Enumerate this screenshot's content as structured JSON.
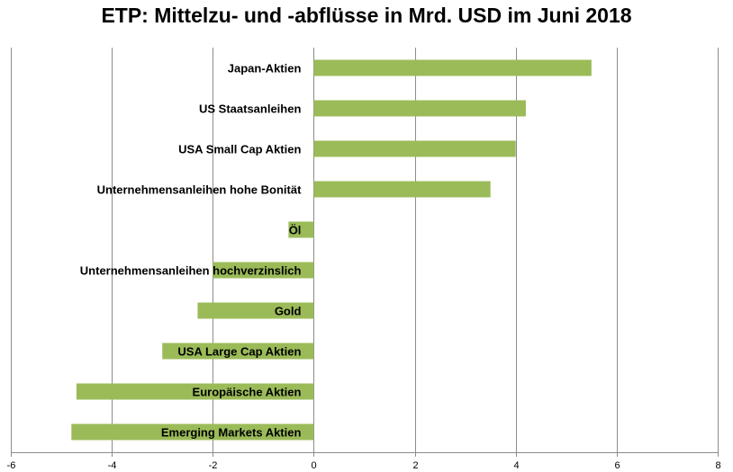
{
  "chart_data": {
    "type": "bar",
    "orientation": "horizontal",
    "title": "ETP: Mittelzu- und -abflüsse in Mrd. USD im Juni 2018",
    "xlabel": "",
    "ylabel": "",
    "xlim": [
      -6,
      8
    ],
    "x_ticks": [
      -6,
      -4,
      -2,
      0,
      2,
      4,
      6,
      8
    ],
    "x_tick_labels": [
      "-6",
      "-4",
      "-2",
      "0",
      "2",
      "4",
      "6",
      "8"
    ],
    "grid": "vertical",
    "legend": "none",
    "bar_color": "#9BBB59",
    "categories": [
      "Japan-Aktien",
      "US Staatsanleihen",
      "USA Small Cap Aktien",
      "Unternehmensanleihen hohe Bonität",
      "Öl",
      "Unternehmensanleihen hochverzinslich",
      "Gold",
      "USA Large Cap Aktien",
      "Europäische Aktien",
      "Emerging Markets Aktien"
    ],
    "values": [
      5.5,
      4.2,
      4.0,
      3.5,
      -0.5,
      -2.0,
      -2.3,
      -3.0,
      -4.7,
      -4.8
    ]
  }
}
